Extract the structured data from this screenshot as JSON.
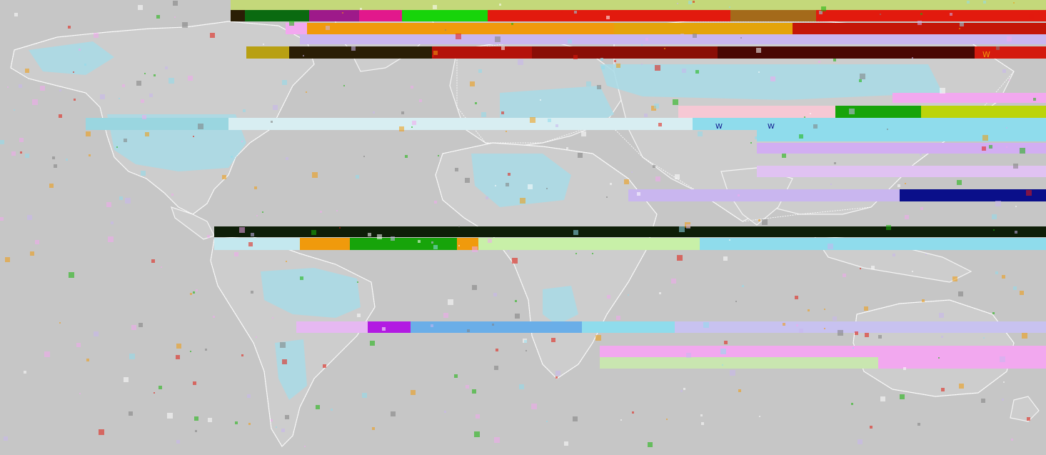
{
  "map": {
    "colors": {
      "background": "#c6c6c6",
      "land": "#cdcdcd",
      "coastline": "#ffffff",
      "water_tint": "#a8dbe6",
      "data_red": "#e21a0e",
      "data_green": "#17b40a",
      "data_orange": "#f09a0c",
      "data_dark": "#2a1e05",
      "data_navy": "#0a0f8a",
      "data_pink": "#f2a8ef",
      "data_lavender": "#c9b6ef",
      "data_cyan": "#8fdcec",
      "data_lime": "#bcd40a",
      "data_blue": "#6aaee8",
      "data_pale_green": "#c9e6b0"
    },
    "markers": [
      "W",
      "W",
      "W",
      "W"
    ]
  }
}
